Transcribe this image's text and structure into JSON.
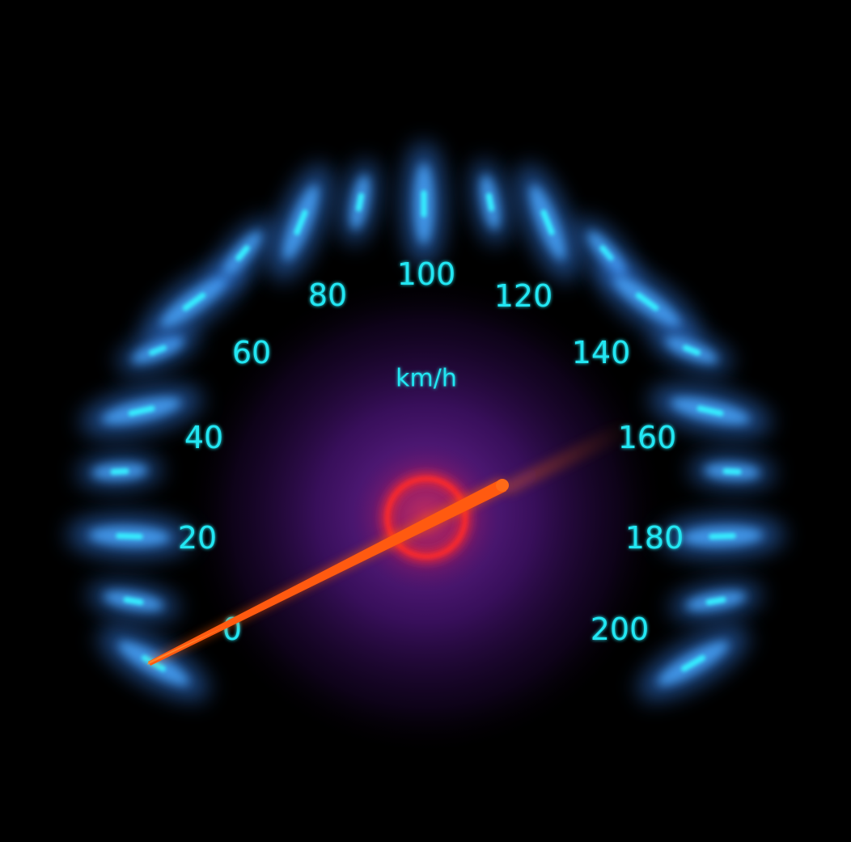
{
  "speedometer": {
    "unit": "km/h",
    "min": 0,
    "max": 200,
    "major_step": 20,
    "reading": 0,
    "scale_labels": [
      "0",
      "20",
      "40",
      "60",
      "80",
      "100",
      "120",
      "140",
      "160",
      "180",
      "200"
    ]
  },
  "colors": {
    "background": "#000000",
    "label": "#22e6f2",
    "tick_core": "#34f0ff",
    "tick_glow": "#3a8cff",
    "needle": "#ff5a10",
    "hub_ring": "#ff2a2a",
    "center_glow": "#5a1a8c"
  },
  "icons": {
    "needle": "needle-icon",
    "hub": "hub-ring-icon"
  }
}
